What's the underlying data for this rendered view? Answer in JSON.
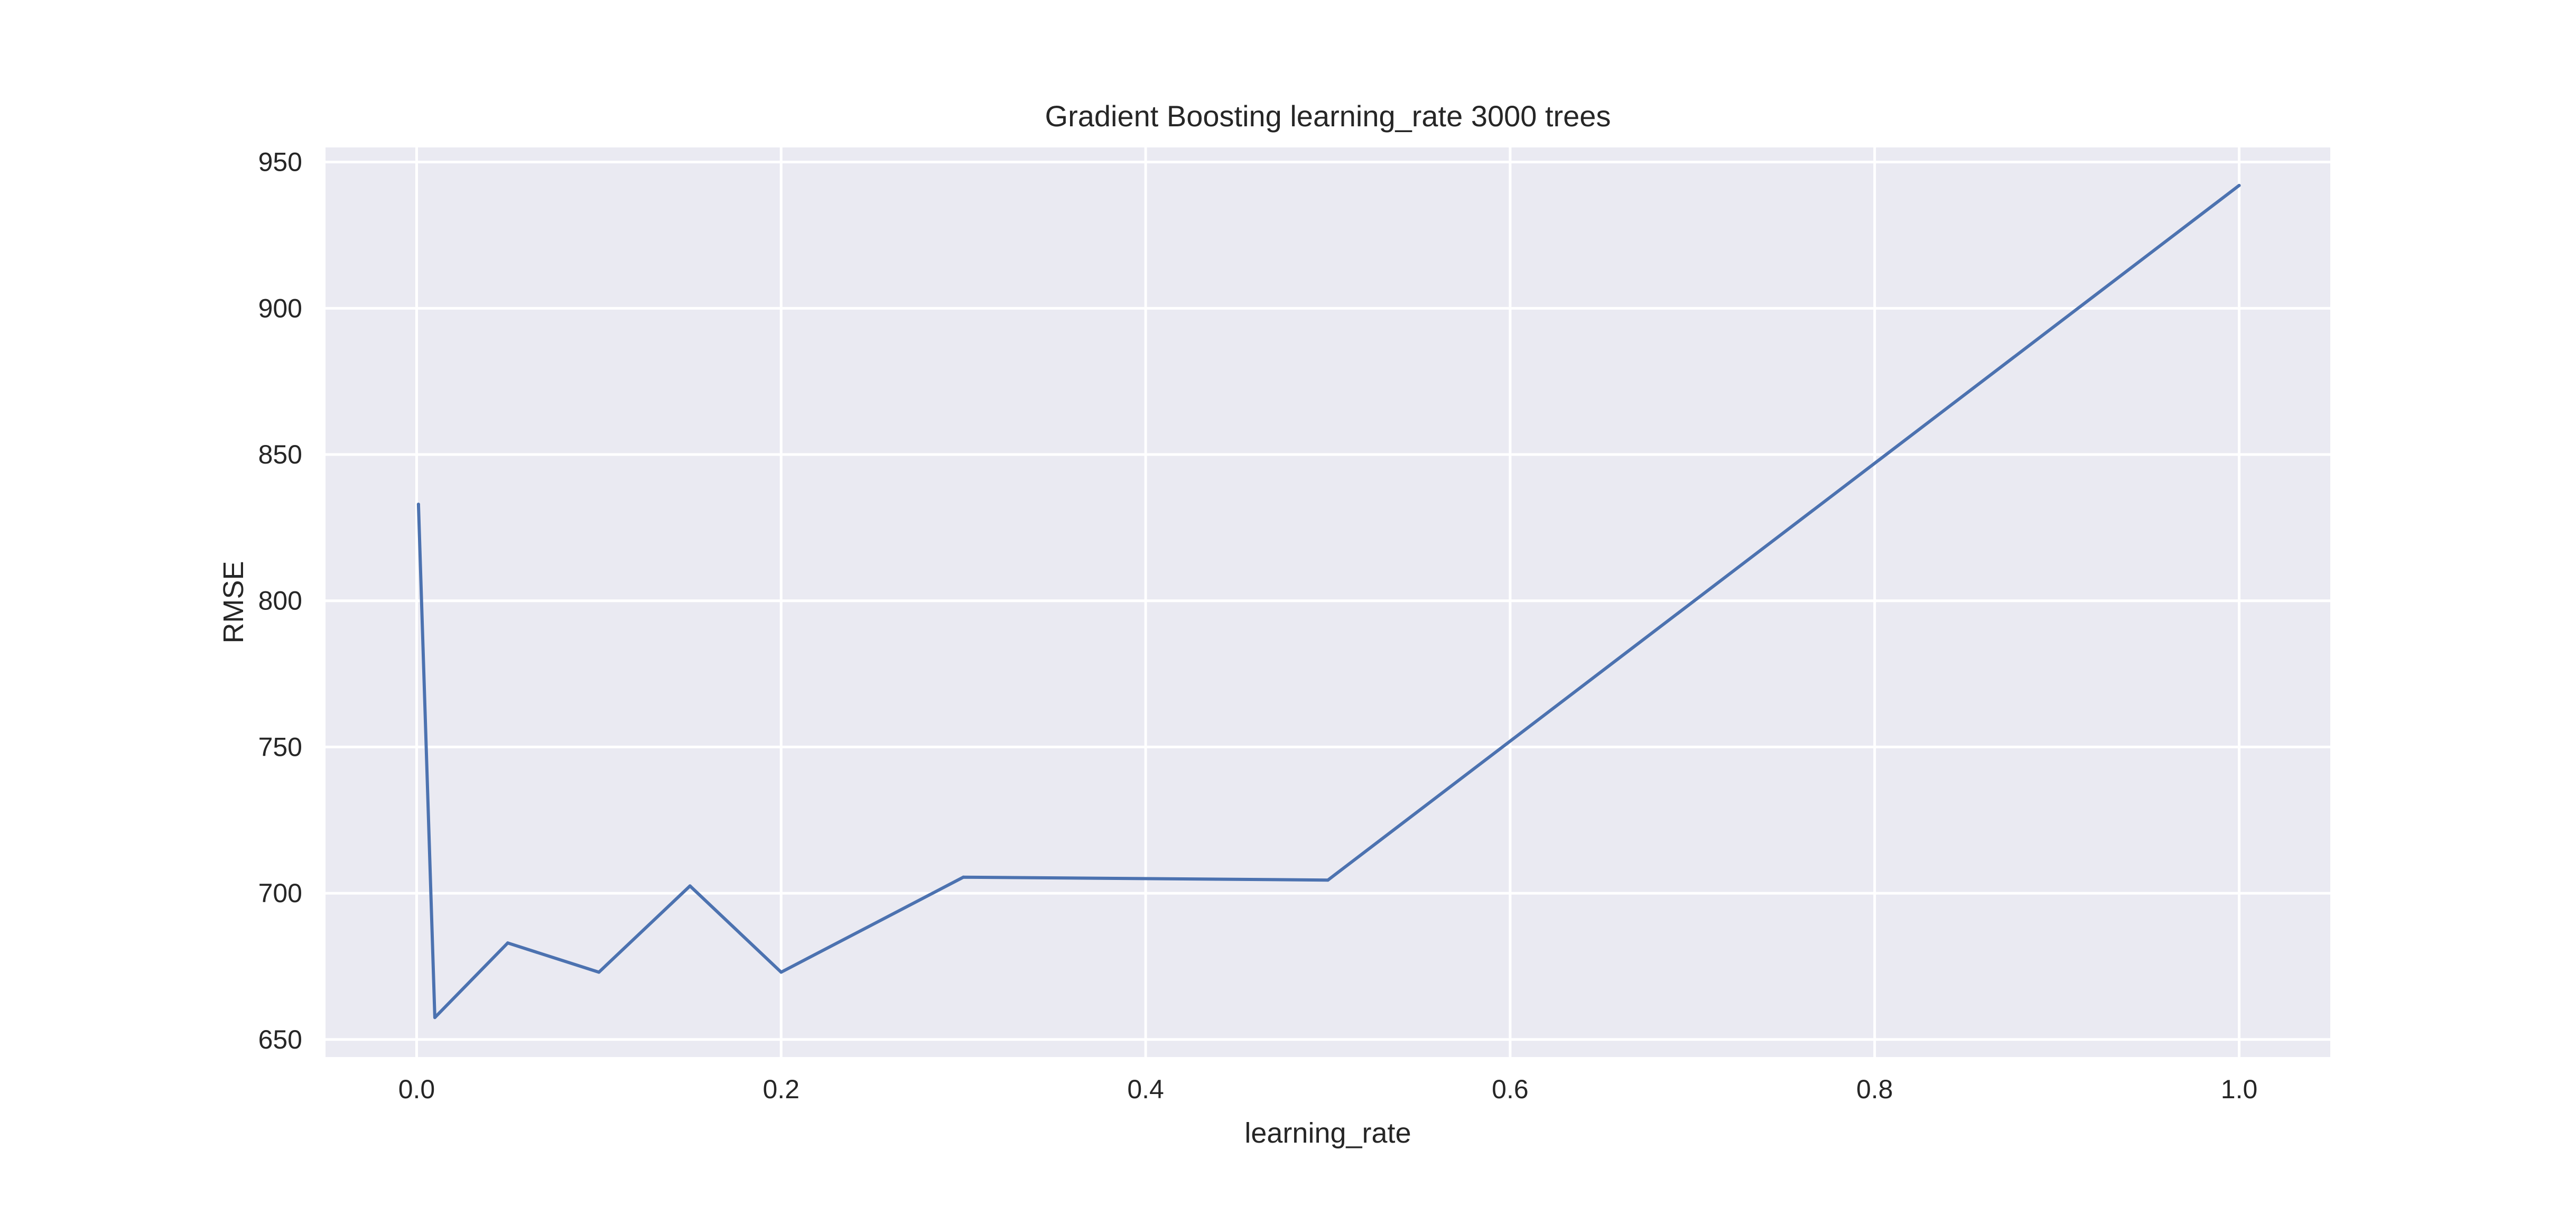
{
  "chart_data": {
    "type": "line",
    "title": "Gradient Boosting learning_rate 3000 trees",
    "xlabel": "learning_rate",
    "ylabel": "RMSE",
    "xlim": [
      -0.05,
      1.05
    ],
    "ylim": [
      644,
      955
    ],
    "xticks": [
      0.0,
      0.2,
      0.4,
      0.6,
      0.8,
      1.0
    ],
    "xtick_labels": [
      "0.0",
      "0.2",
      "0.4",
      "0.6",
      "0.8",
      "1.0"
    ],
    "yticks": [
      650,
      700,
      750,
      800,
      850,
      900,
      950
    ],
    "ytick_labels": [
      "650",
      "700",
      "750",
      "800",
      "850",
      "900",
      "950"
    ],
    "grid": true,
    "colors": {
      "plot_background": "#EAEAF2",
      "grid": "#FFFFFF",
      "line": "#4C72B0"
    },
    "series": [
      {
        "x": [
          0.001,
          0.01,
          0.05,
          0.1,
          0.15,
          0.2,
          0.3,
          0.5,
          1.0
        ],
        "y": [
          833,
          657.5,
          683,
          673,
          702.5,
          673,
          705.5,
          704.5,
          942
        ]
      }
    ]
  }
}
